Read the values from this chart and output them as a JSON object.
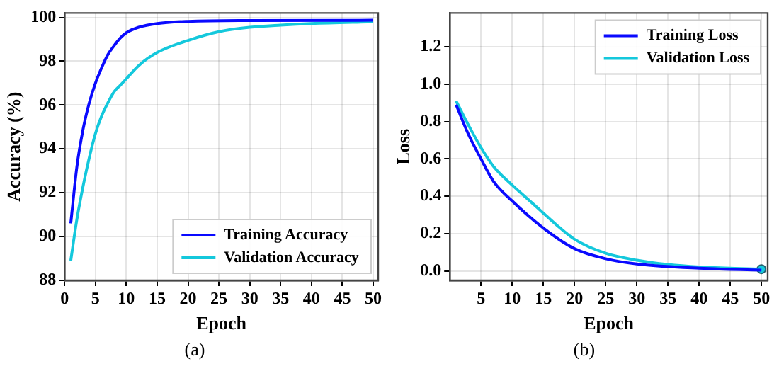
{
  "chart_data": [
    {
      "type": "line",
      "xlabel": "Epoch",
      "ylabel": "Accuracy (%)",
      "annotations": [
        "(a)"
      ],
      "xlim": [
        0,
        50.8
      ],
      "xticks": [
        0,
        5,
        10,
        15,
        20,
        25,
        30,
        35,
        40,
        45,
        50
      ],
      "ylim": [
        88,
        100.2
      ],
      "yticks": [
        88,
        90,
        92,
        94,
        96,
        98,
        100
      ],
      "grid": true,
      "legend": "bottom right",
      "marker": "none",
      "line_style": "solid",
      "series": [
        {
          "name": "Training Accuracy",
          "color": "#0a0aff",
          "x": [
            1,
            2,
            3,
            4,
            5,
            6,
            7,
            8,
            9,
            10,
            12,
            15,
            20,
            30,
            50
          ],
          "values": [
            90.6,
            93.2,
            94.9,
            96.1,
            97.0,
            97.7,
            98.3,
            98.7,
            99.05,
            99.3,
            99.55,
            99.72,
            99.82,
            99.86,
            99.87
          ]
        },
        {
          "name": "Validation Accuracy",
          "color": "#14c8dc",
          "x": [
            1,
            2,
            3,
            4,
            5,
            6,
            7,
            8,
            9,
            10,
            12,
            15,
            20,
            25,
            30,
            35,
            40,
            50
          ],
          "values": [
            88.9,
            90.8,
            92.3,
            93.6,
            94.7,
            95.5,
            96.1,
            96.6,
            96.9,
            97.2,
            97.8,
            98.4,
            98.95,
            99.35,
            99.55,
            99.65,
            99.72,
            99.8
          ]
        }
      ]
    },
    {
      "type": "line",
      "xlabel": "Epoch",
      "ylabel": "Loss",
      "annotations": [
        "(b)"
      ],
      "xlim": [
        0,
        51
      ],
      "xticks": [
        5,
        10,
        15,
        20,
        25,
        30,
        35,
        40,
        45,
        50
      ],
      "ylim": [
        -0.05,
        1.38
      ],
      "yticks": [
        {
          "value": 0,
          "label": "0.0"
        },
        0.2,
        0.4,
        0.6,
        0.8,
        {
          "value": 1,
          "label": "1.0"
        },
        1.2
      ],
      "grid": true,
      "legend": "top right",
      "marker": "none",
      "line_style": "solid",
      "series": [
        {
          "name": "Training Loss",
          "color": "#0a0aff",
          "x": [
            1,
            3,
            5,
            7,
            10,
            15,
            20,
            25,
            30,
            40,
            50
          ],
          "values": [
            0.89,
            0.73,
            0.6,
            0.48,
            0.375,
            0.23,
            0.12,
            0.066,
            0.038,
            0.015,
            0.005
          ]
        },
        {
          "name": "Validation Loss",
          "color": "#14c8dc",
          "x": [
            1,
            3,
            5,
            7,
            10,
            12,
            15,
            17,
            20,
            25,
            30,
            35,
            40,
            50
          ],
          "values": [
            0.91,
            0.78,
            0.66,
            0.56,
            0.46,
            0.4,
            0.31,
            0.25,
            0.17,
            0.095,
            0.058,
            0.035,
            0.022,
            0.01
          ]
        },
        {
          "type": "scatter",
          "marker": "circle",
          "color": "#14c8dc",
          "x": [
            50
          ],
          "values": [
            0.01
          ]
        }
      ]
    }
  ]
}
